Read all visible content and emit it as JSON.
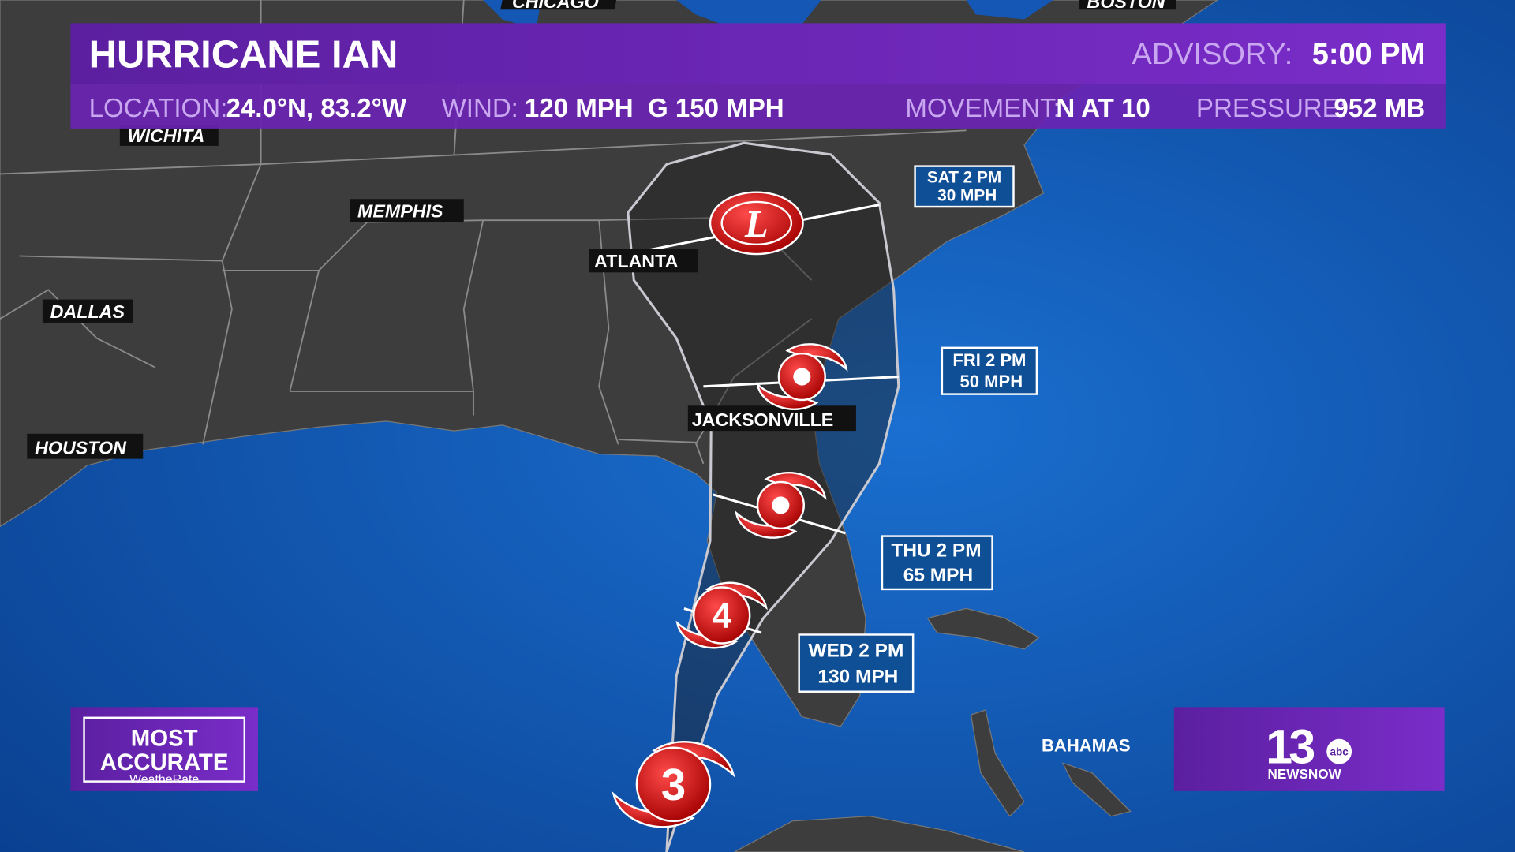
{
  "header": {
    "title": "HURRICANE IAN",
    "advisory_label": "ADVISORY:",
    "advisory_time": "5:00 PM",
    "details": [
      {
        "label": "LOCATION:",
        "value": "24.0°N, 83.2°W"
      },
      {
        "label": "WIND:",
        "value": "120 MPH  G 150 MPH"
      },
      {
        "label": "MOVEMENT:",
        "value": "N AT 10"
      },
      {
        "label": "PRESSURE:",
        "value": "952 MB"
      }
    ]
  },
  "cities": [
    "CHICAGO",
    "BOSTON",
    "WICHITA",
    "MEMPHIS",
    "ATLANTA",
    "DALLAS",
    "HOUSTON",
    "JACKSONVILLE",
    "BAHAMAS"
  ],
  "forecast_points": [
    {
      "time": "SAT 2 PM",
      "wind": "30 MPH"
    },
    {
      "time": "FRI 2 PM",
      "wind": "50 MPH"
    },
    {
      "time": "THU 2 PM",
      "wind": "65 MPH"
    },
    {
      "time": "WED 2 PM",
      "wind": "130 MPH"
    }
  ],
  "storm_icons": [
    "3",
    "4",
    "L"
  ],
  "logos": {
    "left": [
      "MOST",
      "ACCURATE",
      "WeatheRate"
    ],
    "right": {
      "number": "13",
      "network": "abc",
      "brand": "NEWSNOW"
    }
  }
}
